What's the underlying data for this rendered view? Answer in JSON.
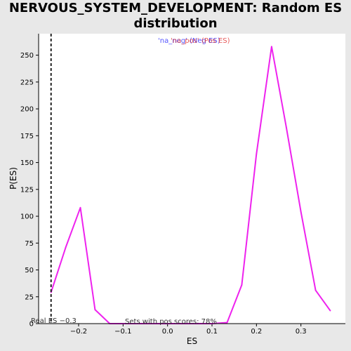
{
  "chart_data": {
    "type": "line",
    "title": "NERVOUS_SYSTEM_DEVELOPMENT: Random ES distribution",
    "xlabel": "ES",
    "ylabel": "P(ES)",
    "xlim": [
      -0.29,
      0.4
    ],
    "ylim": [
      0,
      270
    ],
    "xticks": [
      -0.2,
      -0.1,
      0.0,
      0.1,
      0.2,
      0.3
    ],
    "xtick_labels": [
      "−0.2",
      "−0.1",
      "0.0",
      "0.1",
      "0.2",
      "0.3"
    ],
    "yticks": [
      0,
      25,
      50,
      75,
      100,
      125,
      150,
      175,
      200,
      225,
      250
    ],
    "ytick_labels": [
      "0",
      "25",
      "50",
      "75",
      "100",
      "125",
      "150",
      "175",
      "200",
      "225",
      "250"
    ],
    "grid": false,
    "series": [
      {
        "name": "P(ES)",
        "color": "#ee22ee",
        "x": [
          -0.262,
          -0.229,
          -0.196,
          -0.163,
          -0.13,
          -0.097,
          -0.064,
          -0.031,
          0.002,
          0.035,
          0.068,
          0.101,
          0.134,
          0.167,
          0.2,
          0.234,
          0.267,
          0.3,
          0.333,
          0.366
        ],
        "y": [
          29,
          71,
          108,
          13,
          0,
          0,
          0,
          0,
          0,
          0,
          0,
          0,
          1,
          36,
          158,
          258,
          183,
          104,
          31,
          12
        ]
      }
    ],
    "observed_es": -0.262,
    "observed_label": "Real ES −0.3",
    "legend": {
      "neg_label": "'na_neg' (Neg ES)",
      "pos_label": "'na_pos' (Pos ES)",
      "neg_color": "#5555ff",
      "pos_color": "#dd2222"
    },
    "annotation": "Sets with pos scores: 78%"
  }
}
